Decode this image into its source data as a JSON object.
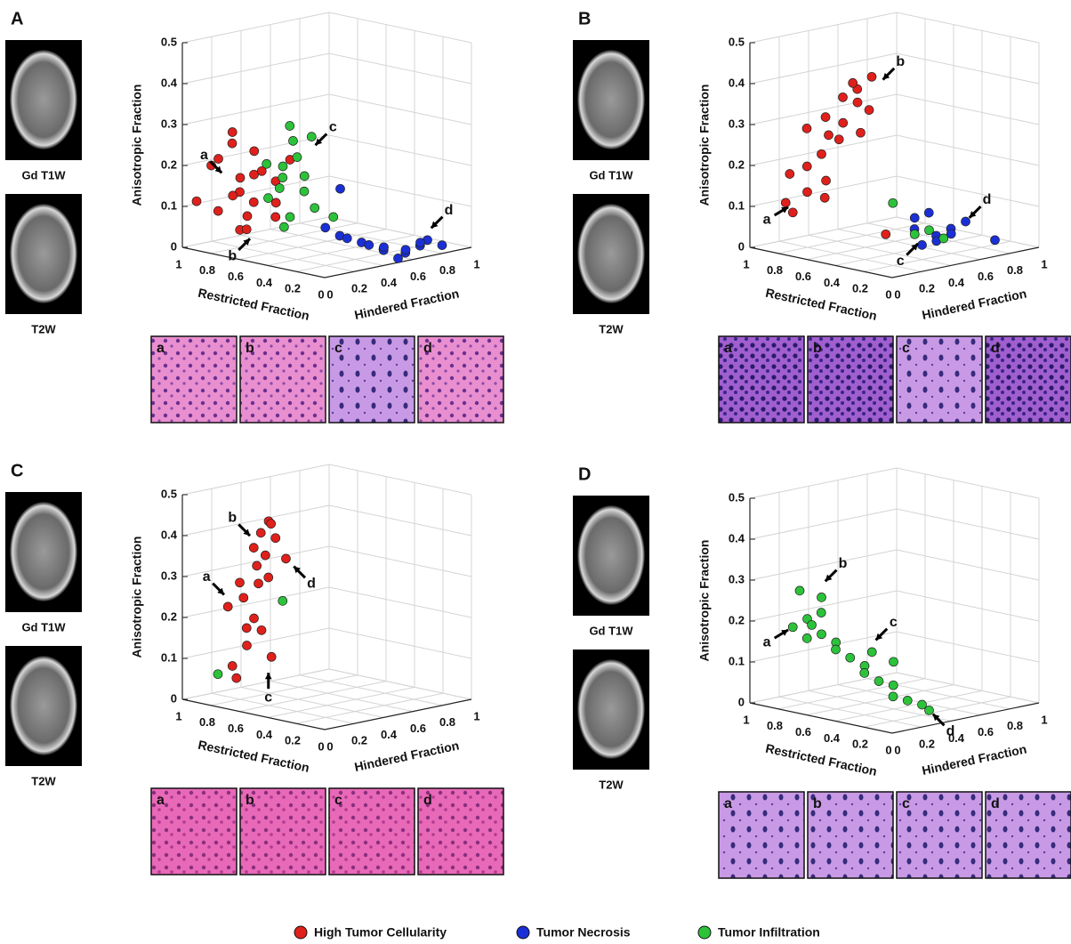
{
  "chart_data": [
    {
      "type": "scatter3d",
      "panel": "A",
      "images": [
        "Gd T1W",
        "T2W"
      ],
      "xlabel": "Restricted Fraction",
      "ylabel": "Hindered Fraction",
      "zlabel": "Anisotropic Fraction",
      "xlim": [
        0,
        1
      ],
      "ylim": [
        0,
        1
      ],
      "zlim": [
        0,
        0.5
      ],
      "xticks": [
        1,
        0.8,
        0.6,
        0.4,
        0.2,
        0
      ],
      "yticks": [
        0,
        0.2,
        0.4,
        0.6,
        0.8,
        1
      ],
      "zticks": [
        0,
        0.1,
        0.2,
        0.3,
        0.4,
        0.5
      ],
      "series": [
        {
          "name": "High Tumor Cellularity",
          "color": "#e0201b",
          "x": [
            0.8,
            0.7,
            0.6,
            0.9,
            0.75,
            0.65,
            0.55,
            0.85,
            0.7,
            0.6,
            0.5,
            0.8,
            0.65,
            0.75,
            0.55,
            0.9,
            0.7,
            0.6,
            0.45,
            0.8
          ],
          "y": [
            0.05,
            0.1,
            0.1,
            0.0,
            0.2,
            0.15,
            0.2,
            0.1,
            0.05,
            0.25,
            0.15,
            0.2,
            0.0,
            0.15,
            0.05,
            0.1,
            0.25,
            0.05,
            0.2,
            0.15
          ],
          "z": [
            0.1,
            0.15,
            0.2,
            0.12,
            0.08,
            0.25,
            0.18,
            0.22,
            0.3,
            0.12,
            0.1,
            0.17,
            0.28,
            0.05,
            0.14,
            0.2,
            0.19,
            0.07,
            0.24,
            0.13
          ]
        },
        {
          "name": "Tumor Infiltration",
          "color": "#2cc33a",
          "x": [
            0.45,
            0.4,
            0.5,
            0.35,
            0.45,
            0.4,
            0.5,
            0.38,
            0.42,
            0.48,
            0.35,
            0.44,
            0.3,
            0.46,
            0.4
          ],
          "y": [
            0.15,
            0.2,
            0.1,
            0.25,
            0.2,
            0.15,
            0.2,
            0.3,
            0.1,
            0.25,
            0.2,
            0.15,
            0.35,
            0.05,
            0.25
          ],
          "z": [
            0.2,
            0.25,
            0.15,
            0.3,
            0.1,
            0.33,
            0.22,
            0.12,
            0.18,
            0.28,
            0.17,
            0.08,
            0.1,
            0.24,
            0.2
          ]
        },
        {
          "name": "Tumor Necrosis",
          "color": "#1b2fd6",
          "x": [
            0.1,
            0.05,
            0.0,
            0.05,
            0.0,
            0.1,
            0.0,
            0.05,
            0.0,
            0.0,
            0.05,
            0.1,
            0.0,
            0.05,
            0.15,
            0.2
          ],
          "y": [
            0.2,
            0.3,
            0.4,
            0.45,
            0.55,
            0.5,
            0.65,
            0.6,
            0.7,
            0.8,
            0.35,
            0.25,
            0.5,
            0.7,
            0.15,
            0.3
          ],
          "z": [
            0.08,
            0.06,
            0.04,
            0.03,
            0.02,
            0.03,
            0.03,
            0.02,
            0.04,
            0.02,
            0.05,
            0.07,
            0.01,
            0.03,
            0.1,
            0.18
          ]
        }
      ],
      "annotations": [
        {
          "text": "a",
          "x": 0.8,
          "y": 0.1,
          "z": 0.18
        },
        {
          "text": "b",
          "x": 0.55,
          "y": 0.05,
          "z": 0.06
        },
        {
          "text": "c",
          "x": 0.35,
          "y": 0.25,
          "z": 0.27
        },
        {
          "text": "d",
          "x": 0.0,
          "y": 0.7,
          "z": 0.06
        }
      ],
      "histology": [
        "a",
        "b",
        "c",
        "d"
      ]
    },
    {
      "type": "scatter3d",
      "panel": "B",
      "images": [
        "Gd T1W",
        "T2W"
      ],
      "xlabel": "Restricted Fraction",
      "ylabel": "Hindered Fraction",
      "zlabel": "Anisotropic Fraction",
      "xlim": [
        0,
        1
      ],
      "ylim": [
        0,
        1
      ],
      "zlim": [
        0,
        0.5
      ],
      "xticks": [
        1,
        0.8,
        0.6,
        0.4,
        0.2,
        0
      ],
      "yticks": [
        0,
        0.2,
        0.4,
        0.6,
        0.8,
        1
      ],
      "zticks": [
        0,
        0.1,
        0.2,
        0.3,
        0.4,
        0.5
      ],
      "series": [
        {
          "color": "#e0201b",
          "x": [
            0.75,
            0.7,
            0.72,
            0.65,
            0.6,
            0.62,
            0.55,
            0.5,
            0.52,
            0.45,
            0.4,
            0.42,
            0.35,
            0.38,
            0.8,
            0.68,
            0.58,
            0.48,
            0.6,
            0.45,
            0.2
          ],
          "y": [
            0.05,
            0.1,
            0.0,
            0.05,
            0.1,
            0.15,
            0.1,
            0.15,
            0.05,
            0.2,
            0.15,
            0.25,
            0.2,
            0.1,
            0.05,
            0.2,
            0.2,
            0.25,
            0.0,
            0.1,
            0.15
          ],
          "z": [
            0.1,
            0.15,
            0.2,
            0.22,
            0.25,
            0.18,
            0.3,
            0.33,
            0.35,
            0.38,
            0.42,
            0.36,
            0.45,
            0.44,
            0.12,
            0.13,
            0.28,
            0.3,
            0.32,
            0.4,
            0.08
          ]
        },
        {
          "color": "#1b2fd6",
          "x": [
            0.05,
            0.0,
            0.1,
            0.05,
            0.0,
            0.0,
            0.05,
            0.1,
            0.0,
            0.0
          ],
          "y": [
            0.2,
            0.3,
            0.25,
            0.35,
            0.4,
            0.25,
            0.45,
            0.3,
            0.5,
            0.7
          ],
          "z": [
            0.1,
            0.08,
            0.12,
            0.06,
            0.09,
            0.14,
            0.07,
            0.05,
            0.1,
            0.04
          ]
        },
        {
          "color": "#2cc33a",
          "x": [
            0.1,
            0.05,
            0.0,
            0.15
          ],
          "y": [
            0.25,
            0.3,
            0.35,
            0.15
          ],
          "z": [
            0.08,
            0.09,
            0.07,
            0.16
          ]
        }
      ],
      "annotations": [
        {
          "text": "a",
          "x": 0.75,
          "y": 0.05,
          "z": 0.12
        },
        {
          "text": "b",
          "x": 0.35,
          "y": 0.25,
          "z": 0.43
        },
        {
          "text": "c",
          "x": 0.05,
          "y": 0.25,
          "z": 0.07
        },
        {
          "text": "d",
          "x": 0.0,
          "y": 0.5,
          "z": 0.1
        }
      ],
      "histology": [
        "a",
        "b",
        "c",
        "d"
      ]
    },
    {
      "type": "scatter3d",
      "panel": "C",
      "images": [
        "Gd T1W",
        "T2W"
      ],
      "xlabel": "Restricted Fraction",
      "ylabel": "Hindered Fraction",
      "zlabel": "Anisotropic Fraction",
      "xlim": [
        0,
        1
      ],
      "ylim": [
        0,
        1
      ],
      "zlim": [
        0,
        0.5
      ],
      "xticks": [
        1,
        0.8,
        0.6,
        0.4,
        0.2,
        0
      ],
      "yticks": [
        0,
        0.2,
        0.4,
        0.6,
        0.8,
        1
      ],
      "zticks": [
        0,
        0.1,
        0.2,
        0.3,
        0.4,
        0.5
      ],
      "series": [
        {
          "color": "#e0201b",
          "x": [
            0.7,
            0.65,
            0.6,
            0.68,
            0.62,
            0.58,
            0.55,
            0.6,
            0.52,
            0.5,
            0.57,
            0.65,
            0.6,
            0.55,
            0.5,
            0.62,
            0.7,
            0.58,
            0.53,
            0.48
          ],
          "y": [
            0.05,
            0.1,
            0.05,
            0.0,
            0.15,
            0.1,
            0.05,
            0.2,
            0.1,
            0.15,
            0.0,
            0.2,
            0.1,
            0.15,
            0.05,
            0.0,
            0.1,
            0.2,
            0.25,
            0.1
          ],
          "z": [
            0.1,
            0.15,
            0.2,
            0.25,
            0.3,
            0.35,
            0.4,
            0.45,
            0.38,
            0.42,
            0.28,
            0.18,
            0.22,
            0.32,
            0.44,
            0.08,
            0.3,
            0.12,
            0.36,
            0.46
          ]
        },
        {
          "color": "#2cc33a",
          "x": [
            0.75,
            0.45
          ],
          "y": [
            0.0,
            0.15
          ],
          "z": [
            0.08,
            0.27
          ]
        }
      ],
      "annotations": [
        {
          "text": "a",
          "x": 0.68,
          "y": 0.0,
          "z": 0.27
        },
        {
          "text": "b",
          "x": 0.55,
          "y": 0.05,
          "z": 0.42
        },
        {
          "text": "c",
          "x": 0.55,
          "y": 0.15,
          "z": 0.1
        },
        {
          "text": "d",
          "x": 0.45,
          "y": 0.2,
          "z": 0.36
        }
      ],
      "histology": [
        "a",
        "b",
        "c",
        "d"
      ]
    },
    {
      "type": "scatter3d",
      "panel": "D",
      "images": [
        "Gd T1W",
        "T2W"
      ],
      "xlabel": "Restricted Fraction",
      "ylabel": "Hindered Fraction",
      "zlabel": "Anisotropic Fraction",
      "xlim": [
        0,
        1
      ],
      "ylim": [
        0,
        1
      ],
      "zlim": [
        0,
        0.5
      ],
      "xticks": [
        1,
        0.8,
        0.6,
        0.4,
        0.2,
        0
      ],
      "yticks": [
        0,
        0.2,
        0.4,
        0.6,
        0.8,
        1
      ],
      "zticks": [
        0,
        0.1,
        0.2,
        0.3,
        0.4,
        0.5
      ],
      "series": [
        {
          "color": "#2cc33a",
          "x": [
            0.75,
            0.7,
            0.65,
            0.72,
            0.6,
            0.55,
            0.5,
            0.45,
            0.4,
            0.35,
            0.3,
            0.25,
            0.2,
            0.15,
            0.1,
            0.05,
            0.65,
            0.6,
            0.55,
            0.4,
            0.3
          ],
          "y": [
            0.05,
            0.1,
            0.05,
            0.15,
            0.1,
            0.15,
            0.1,
            0.15,
            0.2,
            0.15,
            0.2,
            0.25,
            0.2,
            0.25,
            0.3,
            0.3,
            0.0,
            0.1,
            0.05,
            0.25,
            0.3
          ],
          "z": [
            0.2,
            0.22,
            0.18,
            0.2,
            0.19,
            0.17,
            0.16,
            0.14,
            0.12,
            0.11,
            0.09,
            0.08,
            0.06,
            0.05,
            0.04,
            0.03,
            0.3,
            0.28,
            0.25,
            0.15,
            0.13
          ]
        }
      ],
      "annotations": [
        {
          "text": "a",
          "x": 0.75,
          "y": 0.05,
          "z": 0.2
        },
        {
          "text": "b",
          "x": 0.6,
          "y": 0.1,
          "z": 0.31
        },
        {
          "text": "c",
          "x": 0.4,
          "y": 0.25,
          "z": 0.17
        },
        {
          "text": "d",
          "x": 0.05,
          "y": 0.3,
          "z": 0.03
        }
      ],
      "histology": [
        "a",
        "b",
        "c",
        "d"
      ]
    }
  ]
}
